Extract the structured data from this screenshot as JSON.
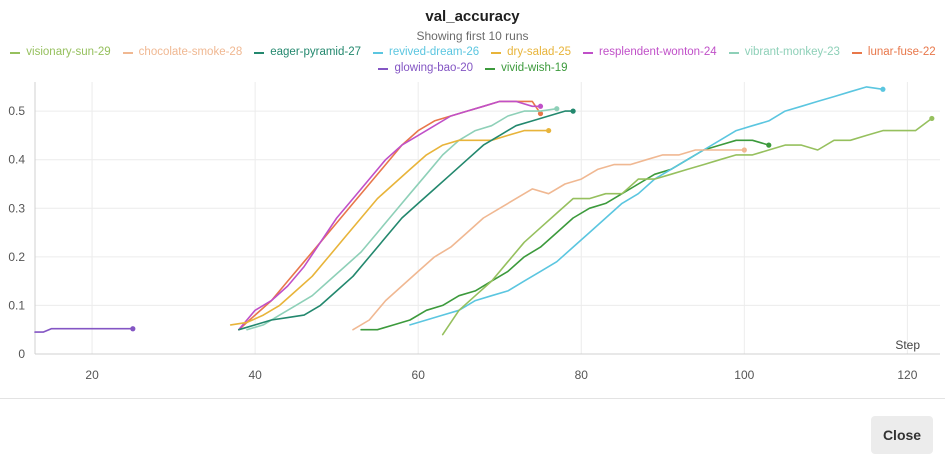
{
  "chart_data": {
    "type": "line",
    "title": "val_accuracy",
    "subtitle": "Showing first 10 runs",
    "xlabel": "Step",
    "ylabel": "",
    "xlim": [
      13,
      124
    ],
    "ylim": [
      0,
      0.56
    ],
    "x_ticks": [
      20,
      40,
      60,
      80,
      100,
      120
    ],
    "y_ticks": [
      0,
      0.1,
      0.2,
      0.3,
      0.4,
      0.5
    ],
    "y_tick_labels": [
      "0",
      "0.1",
      "0.2",
      "0.3",
      "0.4",
      "0.5"
    ],
    "grid": true,
    "legend_position": "top",
    "series": [
      {
        "name": "visionary-sun-29",
        "color": "#96c05e",
        "x": [
          63,
          65,
          67,
          69,
          71,
          73,
          75,
          77,
          79,
          81,
          83,
          85,
          87,
          89,
          91,
          93,
          95,
          97,
          99,
          101,
          103,
          105,
          107,
          109,
          111,
          113,
          115,
          117,
          119,
          121,
          123
        ],
        "y": [
          0.04,
          0.09,
          0.12,
          0.15,
          0.19,
          0.23,
          0.26,
          0.29,
          0.32,
          0.32,
          0.33,
          0.33,
          0.36,
          0.36,
          0.37,
          0.38,
          0.39,
          0.4,
          0.41,
          0.41,
          0.42,
          0.43,
          0.43,
          0.42,
          0.44,
          0.44,
          0.45,
          0.46,
          0.46,
          0.46,
          0.485
        ]
      },
      {
        "name": "chocolate-smoke-28",
        "color": "#f0b892",
        "x": [
          52,
          54,
          56,
          58,
          60,
          62,
          64,
          66,
          68,
          70,
          72,
          74,
          76,
          78,
          80,
          82,
          84,
          86,
          88,
          90,
          92,
          94,
          96,
          98,
          100
        ],
        "y": [
          0.05,
          0.07,
          0.11,
          0.14,
          0.17,
          0.2,
          0.22,
          0.25,
          0.28,
          0.3,
          0.32,
          0.34,
          0.33,
          0.35,
          0.36,
          0.38,
          0.39,
          0.39,
          0.4,
          0.41,
          0.41,
          0.42,
          0.42,
          0.42,
          0.42
        ]
      },
      {
        "name": "eager-pyramid-27",
        "color": "#23886e",
        "x": [
          38,
          40,
          42,
          44,
          46,
          48,
          50,
          52,
          54,
          56,
          58,
          60,
          62,
          64,
          66,
          68,
          70,
          72,
          74,
          76,
          78,
          79
        ],
        "y": [
          0.05,
          0.06,
          0.07,
          0.075,
          0.08,
          0.1,
          0.13,
          0.16,
          0.2,
          0.24,
          0.28,
          0.31,
          0.34,
          0.37,
          0.4,
          0.43,
          0.45,
          0.47,
          0.48,
          0.49,
          0.5,
          0.5
        ]
      },
      {
        "name": "revived-dream-26",
        "color": "#5bc6e0",
        "x": [
          59,
          61,
          63,
          65,
          67,
          69,
          71,
          73,
          75,
          77,
          79,
          81,
          83,
          85,
          87,
          89,
          91,
          93,
          95,
          97,
          99,
          101,
          103,
          105,
          107,
          109,
          111,
          113,
          115,
          117
        ],
        "y": [
          0.06,
          0.07,
          0.08,
          0.09,
          0.11,
          0.12,
          0.13,
          0.15,
          0.17,
          0.19,
          0.22,
          0.25,
          0.28,
          0.31,
          0.33,
          0.36,
          0.38,
          0.4,
          0.42,
          0.44,
          0.46,
          0.47,
          0.48,
          0.5,
          0.51,
          0.52,
          0.53,
          0.54,
          0.55,
          0.545
        ]
      },
      {
        "name": "dry-salad-25",
        "color": "#e8b43a",
        "x": [
          37,
          39,
          41,
          43,
          45,
          47,
          49,
          51,
          53,
          55,
          57,
          59,
          61,
          63,
          65,
          67,
          69,
          71,
          73,
          75,
          76
        ],
        "y": [
          0.06,
          0.065,
          0.08,
          0.1,
          0.13,
          0.16,
          0.2,
          0.24,
          0.28,
          0.32,
          0.35,
          0.38,
          0.41,
          0.43,
          0.44,
          0.44,
          0.44,
          0.45,
          0.46,
          0.46,
          0.46
        ]
      },
      {
        "name": "resplendent-wonton-24",
        "color": "#c050c8",
        "x": [
          38,
          40,
          42,
          44,
          46,
          48,
          50,
          52,
          54,
          56,
          58,
          60,
          62,
          64,
          66,
          68,
          70,
          72,
          74,
          75
        ],
        "y": [
          0.05,
          0.09,
          0.11,
          0.14,
          0.18,
          0.23,
          0.28,
          0.32,
          0.36,
          0.4,
          0.43,
          0.45,
          0.47,
          0.49,
          0.5,
          0.51,
          0.52,
          0.52,
          0.51,
          0.51
        ]
      },
      {
        "name": "vibrant-monkey-23",
        "color": "#8ed0b8",
        "x": [
          39,
          41,
          43,
          45,
          47,
          49,
          51,
          53,
          55,
          57,
          59,
          61,
          63,
          65,
          67,
          69,
          71,
          73,
          75,
          77
        ],
        "y": [
          0.05,
          0.06,
          0.08,
          0.1,
          0.12,
          0.15,
          0.18,
          0.21,
          0.25,
          0.29,
          0.33,
          0.37,
          0.41,
          0.44,
          0.46,
          0.47,
          0.49,
          0.5,
          0.5,
          0.505
        ]
      },
      {
        "name": "lunar-fuse-22",
        "color": "#e8774a",
        "x": [
          38,
          40,
          42,
          44,
          46,
          48,
          50,
          52,
          54,
          56,
          58,
          60,
          62,
          64,
          66,
          68,
          70,
          72,
          74,
          75
        ],
        "y": [
          0.05,
          0.08,
          0.11,
          0.15,
          0.19,
          0.23,
          0.27,
          0.31,
          0.35,
          0.39,
          0.43,
          0.46,
          0.48,
          0.49,
          0.5,
          0.51,
          0.52,
          0.52,
          0.52,
          0.495
        ]
      },
      {
        "name": "glowing-bao-20",
        "color": "#8456c4",
        "x": [
          13,
          14,
          15,
          17,
          19,
          21,
          23,
          25
        ],
        "y": [
          0.045,
          0.045,
          0.052,
          0.052,
          0.052,
          0.052,
          0.052,
          0.052
        ]
      },
      {
        "name": "vivid-wish-19",
        "color": "#3c9a3c",
        "x": [
          53,
          55,
          57,
          59,
          61,
          63,
          65,
          67,
          69,
          71,
          73,
          75,
          77,
          79,
          81,
          83,
          85,
          87,
          89,
          91,
          93,
          95,
          97,
          99,
          101,
          103
        ],
        "y": [
          0.05,
          0.05,
          0.06,
          0.07,
          0.09,
          0.1,
          0.12,
          0.13,
          0.15,
          0.17,
          0.2,
          0.22,
          0.25,
          0.28,
          0.3,
          0.31,
          0.33,
          0.35,
          0.37,
          0.38,
          0.4,
          0.42,
          0.43,
          0.44,
          0.44,
          0.43
        ]
      }
    ]
  },
  "footer": {
    "close_label": "Close"
  }
}
